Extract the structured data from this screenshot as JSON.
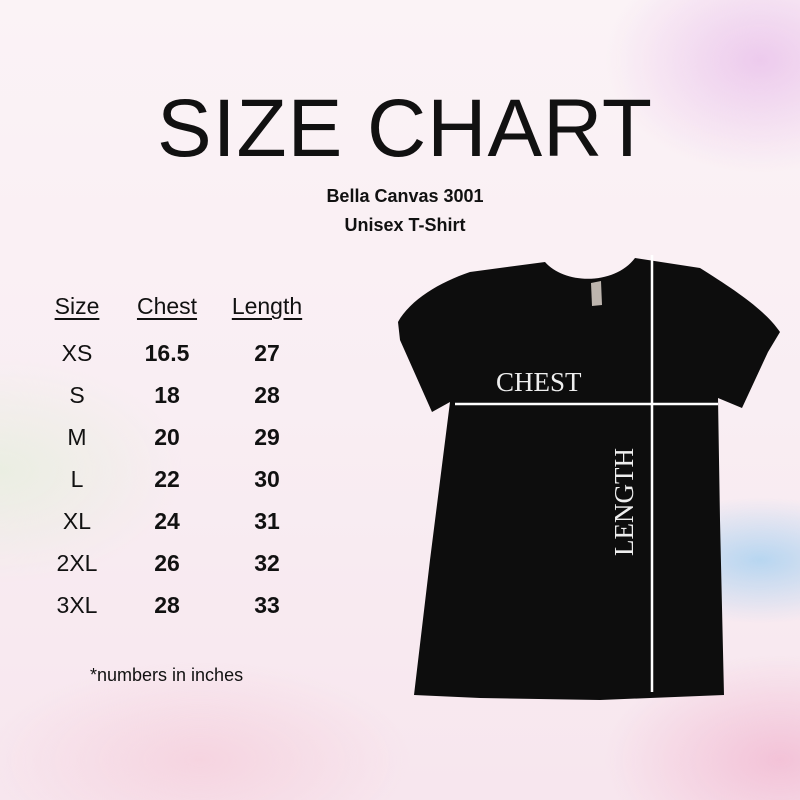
{
  "title": "SIZE CHART",
  "subtitle": [
    "Bella Canvas 3001",
    "Unisex T-Shirt"
  ],
  "table": {
    "headers": [
      "Size",
      "Chest",
      "Length"
    ],
    "rows": [
      [
        "XS",
        "16.5",
        "27"
      ],
      [
        "S",
        "18",
        "28"
      ],
      [
        "M",
        "20",
        "29"
      ],
      [
        "L",
        "22",
        "30"
      ],
      [
        "XL",
        "24",
        "31"
      ],
      [
        "2XL",
        "26",
        "32"
      ],
      [
        "3XL",
        "28",
        "33"
      ]
    ]
  },
  "note": "*numbers in inches",
  "shirt": {
    "chest_label": "CHEST",
    "length_label": "LENGTH",
    "color": "#0d0d0d"
  }
}
